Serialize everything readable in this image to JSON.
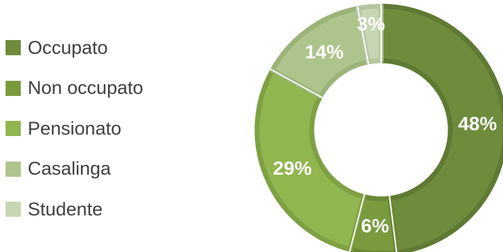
{
  "chart_data": {
    "type": "pie",
    "subtype": "donut",
    "title": "",
    "legend_position": "left",
    "categories": [
      "Occupato",
      "Non occupato",
      "Pensionato",
      "Casalinga",
      "Studente"
    ],
    "values": [
      48,
      6,
      29,
      14,
      3
    ],
    "value_labels": [
      "48%",
      "6%",
      "29%",
      "14%",
      "3%"
    ],
    "colors": [
      "#6E8C3C",
      "#7A9A3E",
      "#91B54F",
      "#ADC48C",
      "#C6D6B4"
    ],
    "border_colors": [
      "#5F7A33",
      "#6A8835",
      "#7FA043",
      "#9BB479",
      "#B4C6A0"
    ]
  }
}
